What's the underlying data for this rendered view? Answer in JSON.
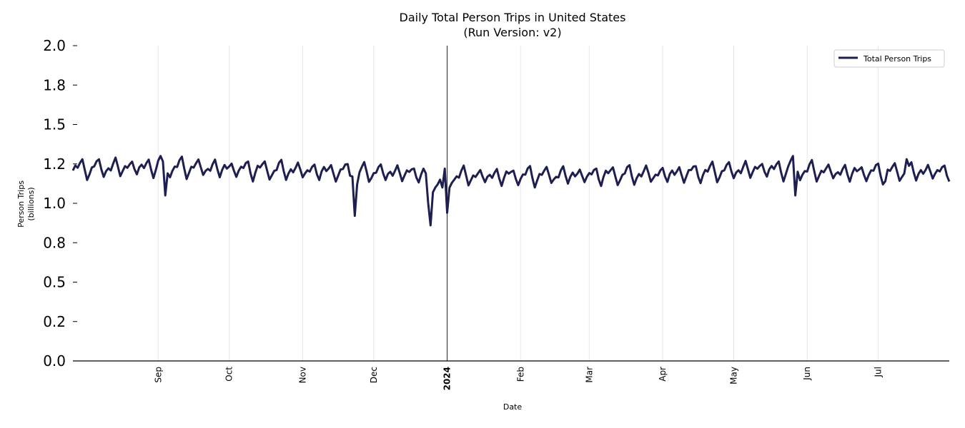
{
  "chart_data": {
    "type": "line",
    "title": "Daily Total Person Trips in United States",
    "subtitle": "(Run Version: v2)",
    "xlabel": "Date",
    "ylabel": "Person Trips",
    "ylabel_unit": "(billions)",
    "ylim": [
      0.0,
      2.0
    ],
    "yticks": [
      "0.0",
      "0.2",
      "0.5",
      "0.8",
      "1.0",
      "1.2",
      "1.5",
      "1.8",
      "2.0"
    ],
    "ytick_values": [
      0.0,
      0.25,
      0.5,
      0.75,
      1.0,
      1.25,
      1.5,
      1.75,
      2.0
    ],
    "x_start": "2023-07-27",
    "x_end": "2024-07-31",
    "xticks": [
      {
        "date": "2023-09-01",
        "label": "Sep",
        "bold": false
      },
      {
        "date": "2023-10-01",
        "label": "Oct",
        "bold": false
      },
      {
        "date": "2023-11-01",
        "label": "Nov",
        "bold": false
      },
      {
        "date": "2023-12-01",
        "label": "Dec",
        "bold": false
      },
      {
        "date": "2024-01-01",
        "label": "2024",
        "bold": true
      },
      {
        "date": "2024-02-01",
        "label": "Feb",
        "bold": false
      },
      {
        "date": "2024-03-01",
        "label": "Mar",
        "bold": false
      },
      {
        "date": "2024-04-01",
        "label": "Apr",
        "bold": false
      },
      {
        "date": "2024-05-01",
        "label": "May",
        "bold": false
      },
      {
        "date": "2024-06-01",
        "label": "Jun",
        "bold": false
      },
      {
        "date": "2024-07-01",
        "label": "Jul",
        "bold": false
      }
    ],
    "year_marker": "2024-01-01",
    "legend": "top-right",
    "grid": "vertical",
    "series": [
      {
        "name": "Total Person Trips",
        "color": "#1c1f4f",
        "start": "2023-07-27",
        "weekly_pattern": [
          1.2,
          1.23,
          1.22,
          1.25,
          1.27,
          1.21,
          1.16
        ],
        "trend_points": [
          {
            "date": "2023-07-27",
            "value": 1.0
          },
          {
            "date": "2023-09-01",
            "value": 1.01
          },
          {
            "date": "2023-11-15",
            "value": 0.985
          },
          {
            "date": "2023-12-20",
            "value": 0.975
          },
          {
            "date": "2024-01-10",
            "value": 0.96
          },
          {
            "date": "2024-02-15",
            "value": 0.965
          },
          {
            "date": "2024-04-01",
            "value": 0.97
          },
          {
            "date": "2024-05-15",
            "value": 1.0
          },
          {
            "date": "2024-06-15",
            "value": 0.98
          },
          {
            "date": "2024-07-31",
            "value": 0.985
          }
        ],
        "overrides": [
          {
            "date": "2023-09-01",
            "value": 1.27
          },
          {
            "date": "2023-09-02",
            "value": 1.3
          },
          {
            "date": "2023-09-04",
            "value": 1.05
          },
          {
            "date": "2023-09-05",
            "value": 1.19
          },
          {
            "date": "2023-11-22",
            "value": 1.17
          },
          {
            "date": "2023-11-23",
            "value": 0.92
          },
          {
            "date": "2023-11-24",
            "value": 1.12
          },
          {
            "date": "2023-12-22",
            "value": 1.22
          },
          {
            "date": "2023-12-23",
            "value": 1.19
          },
          {
            "date": "2023-12-24",
            "value": 1.0
          },
          {
            "date": "2023-12-25",
            "value": 0.86
          },
          {
            "date": "2023-12-26",
            "value": 1.07
          },
          {
            "date": "2023-12-27",
            "value": 1.1
          },
          {
            "date": "2023-12-28",
            "value": 1.12
          },
          {
            "date": "2023-12-29",
            "value": 1.15
          },
          {
            "date": "2023-12-30",
            "value": 1.1
          },
          {
            "date": "2023-12-31",
            "value": 1.22
          },
          {
            "date": "2024-01-01",
            "value": 0.94
          },
          {
            "date": "2024-01-02",
            "value": 1.1
          },
          {
            "date": "2024-01-03",
            "value": 1.13
          },
          {
            "date": "2024-01-04",
            "value": 1.15
          },
          {
            "date": "2024-05-25",
            "value": 1.27
          },
          {
            "date": "2024-05-26",
            "value": 1.3
          },
          {
            "date": "2024-05-27",
            "value": 1.05
          },
          {
            "date": "2024-05-28",
            "value": 1.2
          },
          {
            "date": "2024-07-04",
            "value": 1.14
          },
          {
            "date": "2024-07-13",
            "value": 1.28
          }
        ]
      }
    ]
  }
}
